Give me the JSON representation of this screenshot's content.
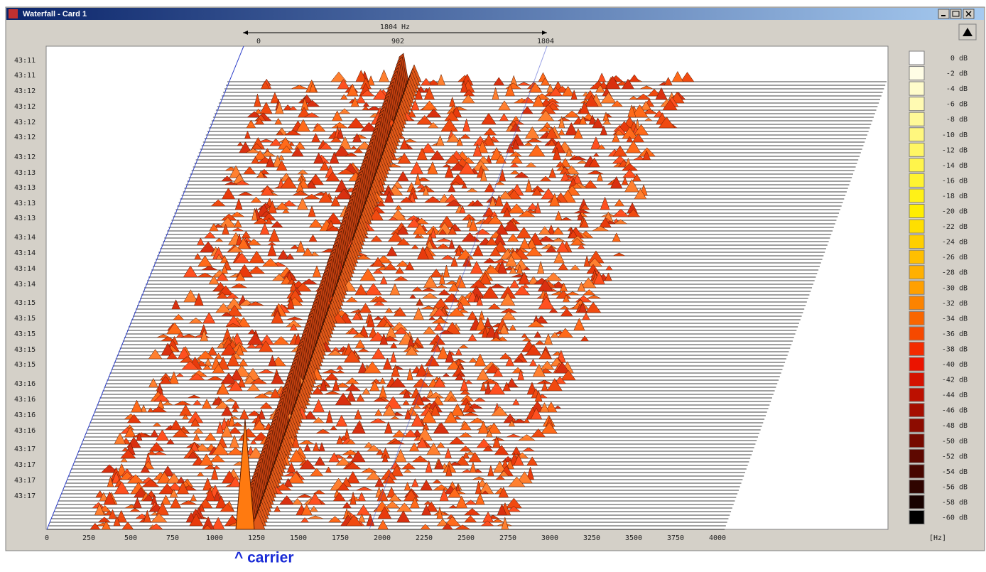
{
  "window": {
    "title": "Waterfall - Card 1"
  },
  "top_scale": {
    "span_label": "1804 Hz",
    "labels": [
      "0",
      "902",
      "1804"
    ]
  },
  "time_labels": [
    "43:11",
    "43:11",
    "43:12",
    "43:12",
    "43:12",
    "43:12",
    "43:12",
    "43:13",
    "43:13",
    "43:13",
    "43:13",
    "43:14",
    "43:14",
    "43:14",
    "43:14",
    "43:15",
    "43:15",
    "43:15",
    "43:15",
    "43:15",
    "43:16",
    "43:16",
    "43:16",
    "43:16",
    "43:17",
    "43:17",
    "43:17",
    "43:17"
  ],
  "x_axis": {
    "labels": [
      "0",
      "250",
      "500",
      "750",
      "1000",
      "1250",
      "1500",
      "1750",
      "2000",
      "2250",
      "2500",
      "2750",
      "3000",
      "3250",
      "3500",
      "3750",
      "4000"
    ],
    "unit": "[Hz]"
  },
  "legend": [
    "0 dB",
    "-2 dB",
    "-4 dB",
    "-6 dB",
    "-8 dB",
    "-10 dB",
    "-12 dB",
    "-14 dB",
    "-16 dB",
    "-18 dB",
    "-20 dB",
    "-22 dB",
    "-24 dB",
    "-26 dB",
    "-28 dB",
    "-30 dB",
    "-32 dB",
    "-34 dB",
    "-36 dB",
    "-38 dB",
    "-40 dB",
    "-42 dB",
    "-44 dB",
    "-46 dB",
    "-48 dB",
    "-50 dB",
    "-52 dB",
    "-54 dB",
    "-56 dB",
    "-58 dB",
    "-60 dB"
  ],
  "annotation": "^ carrier"
}
